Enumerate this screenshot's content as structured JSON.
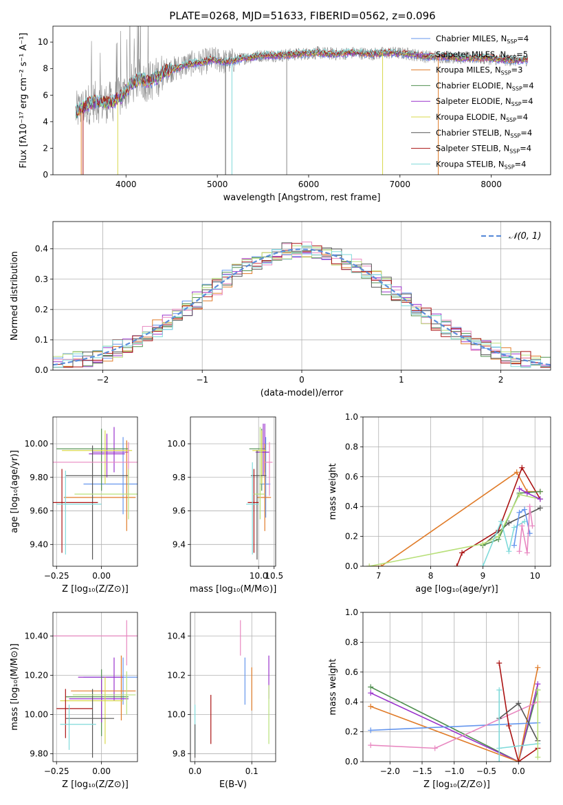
{
  "figure_title": "PLATE=0268, MJD=51633, FIBERID=0562, z=0.096",
  "colors": {
    "Chabrier MILES": "#6495ED",
    "Salpeter MILES": "#9932CC",
    "Kroupa MILES": "#E07B28",
    "Chabrier ELODIE": "#4F8F4F",
    "Salpeter ELODIE": "#9932CC",
    "Kroupa ELODIE": "#D8D84A",
    "Chabrier STELIB": "#555555",
    "Salpeter STELIB": "#AA1111",
    "Kroupa STELIB": "#7FDADA",
    "pink": "#E887C0",
    "limegreen": "#B8E07A",
    "normal": "#5B8DD9"
  },
  "chart_data": [
    {
      "id": "spectrum",
      "type": "line",
      "xlabel": "wavelength [Angstrom, rest frame]",
      "ylabel": "Flux [fλ10⁻¹⁷ erg cm⁻² s⁻¹ A⁻¹]",
      "xlim": [
        3200,
        8650
      ],
      "ylim": [
        0,
        11.2
      ],
      "xticks": [
        4000,
        5000,
        6000,
        7000,
        8000
      ],
      "yticks": [
        0,
        2,
        4,
        6,
        8,
        10
      ],
      "continuum": {
        "x": [
          3450,
          3550,
          3650,
          3750,
          3850,
          3950,
          4050,
          4150,
          4250,
          4350,
          4450,
          4550,
          4650,
          4750,
          4850,
          4950,
          5100,
          5300,
          5500,
          5700,
          5900,
          6100,
          6300,
          6500,
          6700,
          6900,
          7100,
          7300,
          7500,
          7700,
          7900,
          8100,
          8300,
          8400
        ],
        "y": [
          4.7,
          5.2,
          5.5,
          5.4,
          5.5,
          5.9,
          6.8,
          7.2,
          7.0,
          7.4,
          7.9,
          8.0,
          8.3,
          8.4,
          8.5,
          8.7,
          8.5,
          8.8,
          9.0,
          9.0,
          9.1,
          9.2,
          9.1,
          9.2,
          9.1,
          9.2,
          9.1,
          8.9,
          8.9,
          8.8,
          8.8,
          8.7,
          8.6,
          8.7
        ]
      },
      "series": [
        {
          "name": "Chabrier MILES",
          "label": "Chabrier MILES, N",
          "sub": "SSP",
          "suffix": "=4",
          "color": "Chabrier MILES"
        },
        {
          "name": "Salpeter MILES",
          "label": "Salpeter MILES, N",
          "sub": "SSP",
          "suffix": "=5",
          "color": "Salpeter MILES"
        },
        {
          "name": "Kroupa MILES",
          "label": "Kroupa MILES, N",
          "sub": "SSP",
          "suffix": "=3",
          "color": "Kroupa MILES"
        },
        {
          "name": "Chabrier ELODIE",
          "label": "Chabrier ELODIE, N",
          "sub": "SSP",
          "suffix": "=4",
          "color": "Chabrier ELODIE"
        },
        {
          "name": "Salpeter ELODIE",
          "label": "Salpeter ELODIE, N",
          "sub": "SSP",
          "suffix": "=4",
          "color": "Salpeter ELODIE"
        },
        {
          "name": "Kroupa ELODIE",
          "label": "Kroupa ELODIE, N",
          "sub": "SSP",
          "suffix": "=4",
          "color": "Kroupa ELODIE"
        },
        {
          "name": "Chabrier STELIB",
          "label": "Chabrier STELIB, N",
          "sub": "SSP",
          "suffix": "=4",
          "color": "Chabrier STELIB"
        },
        {
          "name": "Salpeter STELIB",
          "label": "Salpeter STELIB, N",
          "sub": "SSP",
          "suffix": "=4",
          "color": "Salpeter STELIB"
        },
        {
          "name": "Kroupa STELIB",
          "label": "Kroupa STELIB, N",
          "sub": "SSP",
          "suffix": "=4",
          "color": "Kroupa STELIB"
        }
      ]
    },
    {
      "id": "residuals",
      "type": "area",
      "xlabel": "(data-model)/error",
      "ylabel": "Normed distribution",
      "xlim": [
        -2.5,
        2.5
      ],
      "ylim": [
        0,
        0.49
      ],
      "xticks": [
        -2,
        -1,
        0,
        1,
        2
      ],
      "yticks": [
        0.0,
        0.1,
        0.2,
        0.3,
        0.4
      ],
      "legend": "𝒩(0, 1)",
      "bin_width": 0.1
    },
    {
      "id": "age_vs_Z",
      "type": "scatter",
      "xlabel": "Z [log₁₀(Z/Z⊙)]",
      "ylabel": "age  [log₁₀(age/yr)]",
      "xlim": [
        -0.27,
        0.2
      ],
      "ylim": [
        9.27,
        10.16
      ],
      "xticks": [
        -0.25,
        0.0
      ],
      "yticks": [
        9.4,
        9.6,
        9.8,
        10.0
      ],
      "points": [
        {
          "c": "Chabrier MILES",
          "x": 0.12,
          "y": 9.76,
          "xe": [
            0.22,
            0.08
          ],
          "ye": [
            0.18,
            0.28
          ]
        },
        {
          "c": "Salpeter MILES",
          "x": 0.07,
          "y": 9.95,
          "xe": [
            0.12,
            0.08
          ],
          "ye": [
            0.12,
            0.15
          ]
        },
        {
          "c": "Kroupa MILES",
          "x": 0.14,
          "y": 9.68,
          "xe": [
            0.35,
            0.05
          ],
          "ye": [
            0.2,
            0.34
          ]
        },
        {
          "c": "Chabrier ELODIE",
          "x": 0.0,
          "y": 9.97,
          "xe": [
            0.25,
            0.15
          ],
          "ye": [
            0.25,
            0.12
          ]
        },
        {
          "c": "Salpeter ELODIE",
          "x": 0.03,
          "y": 9.94,
          "xe": [
            0.1,
            0.1
          ],
          "ye": [
            0.14,
            0.12
          ]
        },
        {
          "c": "Kroupa ELODIE",
          "x": 0.02,
          "y": 9.96,
          "xe": [
            0.24,
            0.15
          ],
          "ye": [
            0.2,
            0.12
          ]
        },
        {
          "c": "Chabrier STELIB",
          "x": -0.05,
          "y": 9.81,
          "xe": [
            0.15,
            0.2
          ],
          "ye": [
            0.5,
            0.18
          ]
        },
        {
          "c": "Salpeter STELIB",
          "x": -0.22,
          "y": 9.65,
          "xe": [
            0.06,
            0.2
          ],
          "ye": [
            0.3,
            0.2
          ]
        },
        {
          "c": "Kroupa STELIB",
          "x": -0.2,
          "y": 9.64,
          "xe": [
            0.05,
            0.2
          ],
          "ye": [
            0.3,
            0.2
          ]
        },
        {
          "c": "pink",
          "x": 0.15,
          "y": 9.89,
          "xe": [
            0.42,
            0.05
          ],
          "ye": [
            0.2,
            0.12
          ]
        },
        {
          "c": "limegreen",
          "x": 0.15,
          "y": 9.7,
          "xe": [
            0.3,
            0.05
          ],
          "ye": [
            0.15,
            0.15
          ]
        }
      ]
    },
    {
      "id": "age_vs_mass",
      "type": "scatter",
      "xlabel": "mass [log₁₀(M/M⊙)]",
      "ylabel": "",
      "xlim": [
        7.8,
        10.55
      ],
      "ylim": [
        9.27,
        10.16
      ],
      "xticks": [
        10.0,
        10.5
      ],
      "yticks": [
        9.4,
        9.6,
        9.8,
        10.0
      ],
      "points": [
        {
          "c": "Chabrier MILES",
          "x": 10.23,
          "y": 9.76,
          "xe": [
            0.2,
            0.15
          ],
          "ye": [
            0.2,
            0.28
          ]
        },
        {
          "c": "Salpeter MILES",
          "x": 10.2,
          "y": 9.95,
          "xe": [
            0.3,
            0.15
          ],
          "ye": [
            0.12,
            0.17
          ]
        },
        {
          "c": "Kroupa MILES",
          "x": 10.2,
          "y": 9.68,
          "xe": [
            0.25,
            0.2
          ],
          "ye": [
            0.2,
            0.32
          ]
        },
        {
          "c": "Chabrier ELODIE",
          "x": 10.1,
          "y": 9.97,
          "xe": [
            0.4,
            0.1
          ],
          "ye": [
            0.25,
            0.12
          ]
        },
        {
          "c": "Salpeter ELODIE",
          "x": 10.15,
          "y": 9.95,
          "xe": [
            0.2,
            0.2
          ],
          "ye": [
            0.14,
            0.17
          ]
        },
        {
          "c": "Kroupa ELODIE",
          "x": 10.1,
          "y": 9.96,
          "xe": [
            0.3,
            0.15
          ],
          "ye": [
            0.2,
            0.12
          ]
        },
        {
          "c": "Chabrier STELIB",
          "x": 9.95,
          "y": 9.81,
          "xe": [
            0.2,
            0.3
          ],
          "ye": [
            0.5,
            0.15
          ]
        },
        {
          "c": "Salpeter STELIB",
          "x": 9.85,
          "y": 9.65,
          "xe": [
            0.2,
            0.15
          ],
          "ye": [
            0.3,
            0.2
          ]
        },
        {
          "c": "Kroupa STELIB",
          "x": 9.8,
          "y": 9.64,
          "xe": [
            0.2,
            0.2
          ],
          "ye": [
            0.3,
            0.25
          ]
        },
        {
          "c": "pink",
          "x": 10.35,
          "y": 9.89,
          "xe": [
            0.2,
            0.1
          ],
          "ye": [
            0.2,
            0.12
          ]
        },
        {
          "c": "limegreen",
          "x": 10.05,
          "y": 9.7,
          "xe": [
            0.2,
            0.15
          ],
          "ye": [
            0.15,
            0.4
          ]
        }
      ]
    },
    {
      "id": "weight_vs_age",
      "type": "line",
      "xlabel": "age  [log₁₀(age/yr)]",
      "ylabel": "mass weight",
      "xlim": [
        6.7,
        10.3
      ],
      "ylim": [
        0,
        1.0
      ],
      "xticks": [
        7,
        8,
        9,
        10
      ],
      "yticks": [
        0.0,
        0.2,
        0.4,
        0.6,
        0.8,
        1.0
      ],
      "lines": [
        {
          "c": "Kroupa MILES",
          "x": [
            6.82,
            7.05,
            9.65,
            9.85,
            10.1
          ],
          "y": [
            0.0,
            0.0,
            0.63,
            0.5,
            0.5
          ]
        },
        {
          "c": "Salpeter STELIB",
          "x": [
            8.5,
            8.6,
            9.3,
            9.75,
            10.1
          ],
          "y": [
            0.0,
            0.09,
            0.24,
            0.66,
            0.45
          ]
        },
        {
          "c": "Chabrier STELIB",
          "x": [
            9.0,
            9.5,
            10.1
          ],
          "y": [
            0.14,
            0.29,
            0.39
          ]
        },
        {
          "c": "Chabrier ELODIE",
          "x": [
            9.0,
            9.3,
            9.7,
            10.1
          ],
          "y": [
            0.14,
            0.18,
            0.49,
            0.5
          ]
        },
        {
          "c": "limegreen",
          "x": [
            6.82,
            9.0,
            9.3,
            9.7,
            10.1
          ],
          "y": [
            0.0,
            0.15,
            0.2,
            0.48,
            0.45
          ]
        },
        {
          "c": "Kroupa STELIB",
          "x": [
            9.0,
            9.35,
            9.5,
            9.6,
            9.8
          ],
          "y": [
            0.0,
            0.3,
            0.1,
            0.26,
            0.3
          ]
        },
        {
          "c": "Chabrier MILES",
          "x": [
            9.6,
            9.7,
            9.8,
            9.9
          ],
          "y": [
            0.14,
            0.36,
            0.38,
            0.22
          ]
        },
        {
          "c": "pink",
          "x": [
            9.7,
            9.75,
            9.85,
            9.9,
            9.95
          ],
          "y": [
            0.1,
            0.27,
            0.09,
            0.4,
            0.27
          ]
        },
        {
          "c": "Salpeter MILES",
          "x": [
            9.7,
            9.85,
            10.1
          ],
          "y": [
            0.52,
            0.49,
            0.45
          ]
        }
      ]
    },
    {
      "id": "mass_vs_Z",
      "type": "scatter",
      "xlabel": "Z [log₁₀(Z/Z⊙)]",
      "ylabel": "mass [log₁₀(M/M⊙)]",
      "xlim": [
        -0.27,
        0.2
      ],
      "ylim": [
        9.76,
        10.52
      ],
      "xticks": [
        -0.25,
        0.0
      ],
      "yticks": [
        9.8,
        10.0,
        10.2,
        10.4
      ],
      "points": [
        {
          "c": "Chabrier MILES",
          "x": 0.12,
          "y": 10.19,
          "xe": [
            0.22,
            0.08
          ],
          "ye": [
            0.14,
            0.1
          ]
        },
        {
          "c": "Salpeter MILES",
          "x": 0.07,
          "y": 10.19,
          "xe": [
            0.2,
            0.05
          ],
          "ye": [
            0.12,
            0.1
          ]
        },
        {
          "c": "Kroupa MILES",
          "x": 0.11,
          "y": 10.12,
          "xe": [
            0.28,
            0.08
          ],
          "ye": [
            0.15,
            0.18
          ]
        },
        {
          "c": "Chabrier ELODIE",
          "x": 0.0,
          "y": 10.09,
          "xe": [
            0.2,
            0.15
          ],
          "ye": [
            0.2,
            0.14
          ]
        },
        {
          "c": "Salpeter ELODIE",
          "x": 0.0,
          "y": 10.08,
          "xe": [
            0.18,
            0.15
          ],
          "ye": [
            0.12,
            0.1
          ]
        },
        {
          "c": "Kroupa ELODIE",
          "x": 0.02,
          "y": 10.07,
          "xe": [
            0.25,
            0.1
          ],
          "ye": [
            0.22,
            0.12
          ]
        },
        {
          "c": "Chabrier STELIB",
          "x": -0.05,
          "y": 9.98,
          "xe": [
            0.15,
            0.12
          ],
          "ye": [
            0.2,
            0.15
          ]
        },
        {
          "c": "Salpeter STELIB",
          "x": -0.2,
          "y": 10.03,
          "xe": [
            0.05,
            0.15
          ],
          "ye": [
            0.15,
            0.1
          ]
        },
        {
          "c": "Kroupa STELIB",
          "x": -0.18,
          "y": 9.95,
          "xe": [
            0.05,
            0.15
          ],
          "ye": [
            0.13,
            0.1
          ]
        },
        {
          "c": "pink",
          "x": 0.14,
          "y": 10.4,
          "xe": [
            0.42,
            0.06
          ],
          "ye": [
            0.15,
            0.08
          ]
        },
        {
          "c": "limegreen",
          "x": 0.14,
          "y": 10.1,
          "xe": [
            0.3,
            0.05
          ],
          "ye": [
            0.1,
            0.12
          ]
        }
      ]
    },
    {
      "id": "mass_vs_EBV",
      "type": "scatter",
      "xlabel": "E(B-V)",
      "ylabel": "",
      "xlim": [
        -0.008,
        0.142
      ],
      "ylim": [
        9.76,
        10.52
      ],
      "xticks": [
        0.0,
        0.1
      ],
      "yticks": [
        9.8,
        10.0,
        10.2,
        10.4
      ],
      "points": [
        {
          "c": "Chabrier MILES",
          "x": 0.088,
          "y": 10.19,
          "ye": [
            0.14,
            0.1
          ]
        },
        {
          "c": "Kroupa MILES",
          "x": 0.1,
          "y": 10.12,
          "ye": [
            0.1,
            0.12
          ]
        },
        {
          "c": "Salpeter MILES",
          "x": 0.13,
          "y": 10.2,
          "ye": [
            0.12,
            0.1
          ]
        },
        {
          "c": "limegreen",
          "x": 0.13,
          "y": 10.05,
          "ye": [
            0.2,
            0.1
          ]
        },
        {
          "c": "Salpeter STELIB",
          "x": 0.028,
          "y": 10.0,
          "ye": [
            0.15,
            0.1
          ]
        },
        {
          "c": "pink",
          "x": 0.08,
          "y": 10.4,
          "ye": [
            0.1,
            0.08
          ]
        },
        {
          "c": "Kroupa STELIB",
          "x": 0.0,
          "y": 9.95,
          "ye": [
            0.15,
            0.1
          ]
        },
        {
          "c": "Chabrier STELIB",
          "x": 0.0,
          "y": 9.9,
          "ye": [
            0.12,
            0.05
          ]
        }
      ]
    },
    {
      "id": "weight_vs_Z",
      "type": "line",
      "xlabel": "Z [log₁₀(Z/Z⊙)]",
      "ylabel": "mass weight",
      "xlim": [
        -2.42,
        0.5
      ],
      "ylim": [
        0,
        1.0
      ],
      "xticks": [
        -2.0,
        -1.5,
        -1.0,
        -0.5,
        0.0
      ],
      "yticks": [
        0.0,
        0.2,
        0.4,
        0.6,
        0.8,
        1.0
      ],
      "lines": [
        {
          "c": "Chabrier ELODIE",
          "x": [
            -2.3,
            0.0,
            0.3
          ],
          "y": [
            0.5,
            0.0,
            0.48
          ]
        },
        {
          "c": "Salpeter ELODIE",
          "x": [
            -2.3,
            0.0,
            0.3
          ],
          "y": [
            0.46,
            0.0,
            0.52
          ]
        },
        {
          "c": "Kroupa MILES",
          "x": [
            -2.3,
            0.0,
            0.3
          ],
          "y": [
            0.37,
            0.0,
            0.63
          ]
        },
        {
          "c": "Chabrier MILES",
          "x": [
            -2.3,
            0.3
          ],
          "y": [
            0.21,
            0.26
          ]
        },
        {
          "c": "pink",
          "x": [
            -2.3,
            -1.3,
            0.3
          ],
          "y": [
            0.11,
            0.09,
            0.4
          ]
        },
        {
          "c": "Salpeter STELIB",
          "x": [
            -0.3,
            -0.15,
            0.0,
            0.3
          ],
          "y": [
            0.66,
            0.24,
            0.0,
            0.09
          ]
        },
        {
          "c": "Chabrier STELIB",
          "x": [
            -0.3,
            0.0,
            0.3
          ],
          "y": [
            0.29,
            0.39,
            0.14
          ]
        },
        {
          "c": "Kroupa STELIB",
          "x": [
            -0.3,
            0.3
          ],
          "y": [
            0.09,
            0.12
          ]
        },
        {
          "c": "limegreen",
          "x": [
            0.3,
            0.3
          ],
          "y": [
            0.03,
            0.48
          ]
        },
        {
          "c": "Kroupa STELIB",
          "x": [
            -0.3,
            -0.3
          ],
          "y": [
            0.0,
            0.48
          ]
        }
      ]
    }
  ]
}
